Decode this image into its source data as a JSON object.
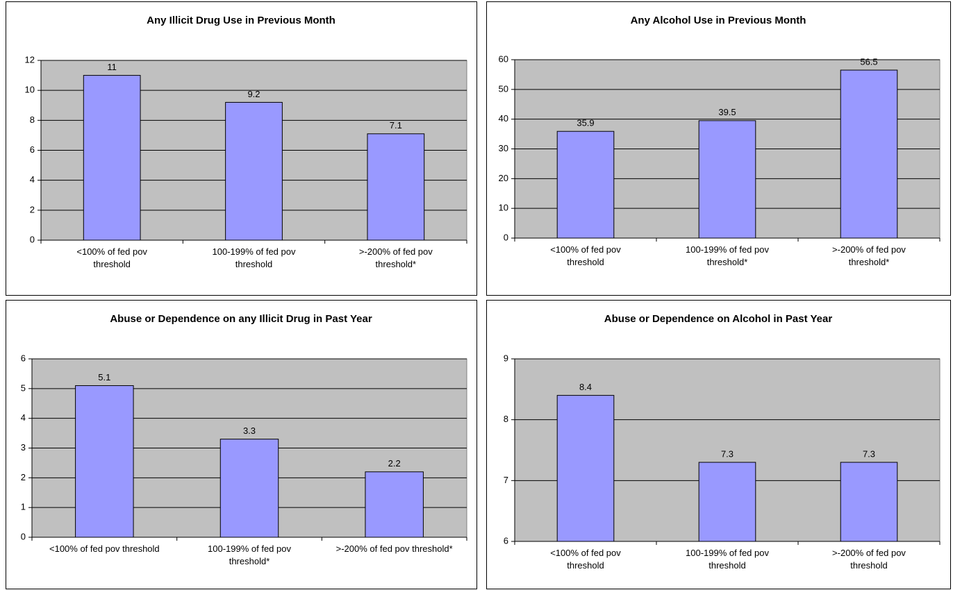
{
  "chart_data": [
    {
      "type": "bar",
      "title": "Any Illicit Drug Use in Previous Month",
      "categories": [
        "<100% of fed pov threshold",
        "100-199% of fed pov threshold",
        ">-200% of fed pov threshold*"
      ],
      "values": [
        11,
        9.2,
        7.1
      ],
      "color": "#9999ff",
      "ylim": [
        0,
        12
      ],
      "yticks": [
        0,
        2,
        4,
        6,
        8,
        10,
        12
      ],
      "grid": true
    },
    {
      "type": "bar",
      "title": "Any Alcohol Use in Previous Month",
      "categories": [
        "<100% of fed pov threshold",
        "100-199% of fed pov threshold*",
        ">-200% of fed pov threshold*"
      ],
      "values": [
        35.9,
        39.5,
        56.5
      ],
      "color": "#9999ff",
      "ylim": [
        0,
        60
      ],
      "yticks": [
        0,
        10,
        20,
        30,
        40,
        50,
        60
      ],
      "grid": true
    },
    {
      "type": "bar",
      "title": "Abuse or Dependence on any Illicit Drug in Past Year",
      "categories": [
        "<100% of fed pov threshold",
        "100-199% of fed pov threshold*",
        ">-200% of fed pov threshold*"
      ],
      "values": [
        5.1,
        3.3,
        2.2
      ],
      "color": "#9999ff",
      "ylim": [
        0,
        6
      ],
      "yticks": [
        0,
        1,
        2,
        3,
        4,
        5,
        6
      ],
      "grid": true
    },
    {
      "type": "bar",
      "title": "Abuse or Dependence on Alcohol in Past Year",
      "categories": [
        "<100% of fed pov threshold",
        "100-199% of fed pov threshold",
        ">-200% of fed pov threshold"
      ],
      "values": [
        8.4,
        7.3,
        7.3
      ],
      "color": "#9999ff",
      "ylim": [
        6,
        9
      ],
      "yticks": [
        6,
        7,
        8,
        9
      ],
      "grid": true
    }
  ]
}
